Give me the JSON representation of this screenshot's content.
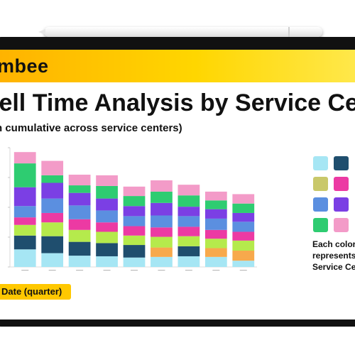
{
  "header": {
    "brand": "mbee"
  },
  "slide": {
    "title": "well Time Analysis by Service Cent",
    "subtitle": "n cumulative across service centers)",
    "xaxis_badge": "Date (quarter)",
    "legend_note": [
      "Each color",
      "represents",
      "Service Ce"
    ]
  },
  "colors": {
    "device_frame": "#111111",
    "brand_yellow": "#ffc800",
    "segments": [
      "#a6e6f4",
      "#1f4e6e",
      "#b5ea4c",
      "#ec3aa3",
      "#5b8fe0",
      "#7b3fe4",
      "#2ecc71",
      "#f39bc8"
    ]
  },
  "chart_data": {
    "type": "bar",
    "stacked": true,
    "categories": [
      "",
      "",
      "",
      "",
      "",
      "",
      "",
      "",
      ""
    ],
    "series": [
      {
        "values": [
          28,
          22,
          18,
          17,
          15,
          16,
          17,
          16,
          10
        ]
      },
      {
        "values": [
          22,
          27,
          22,
          21,
          20,
          15,
          16,
          14,
          16
        ]
      },
      {
        "values": [
          17,
          22,
          19,
          18,
          15,
          17,
          16,
          15,
          16
        ]
      },
      {
        "values": [
          12,
          15,
          17,
          15,
          15,
          15,
          15,
          14,
          14
        ]
      },
      {
        "values": [
          18,
          23,
          22,
          19,
          16,
          19,
          17,
          18,
          16
        ]
      },
      {
        "values": [
          30,
          25,
          20,
          19,
          16,
          20,
          15,
          15,
          14
        ]
      },
      {
        "values": [
          38,
          12,
          12,
          20,
          16,
          18,
          18,
          14,
          15
        ]
      },
      {
        "values": [
          18,
          23,
          17,
          17,
          15,
          18,
          17,
          14,
          15
        ]
      }
    ],
    "overlay_segments": [
      {
        "bar": 5,
        "series": 1,
        "color": "#f7a94c"
      },
      {
        "bar": 7,
        "series": 1,
        "color": "#f7a94c"
      },
      {
        "bar": 8,
        "series": 1,
        "color": "#f7a94c"
      }
    ],
    "ylim": [
      0,
      190
    ],
    "legend": {
      "position": "right",
      "columns": 2,
      "rows": 4
    }
  }
}
